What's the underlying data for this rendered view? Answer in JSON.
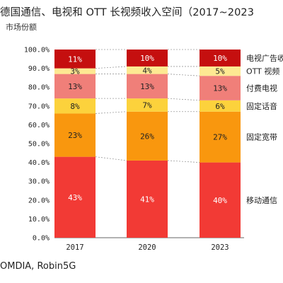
{
  "title": "德国通信、电视和 OTT 长视频收入空间（2017~2023",
  "subtitle": "市场份额",
  "source": "OMDIA, Robin5G",
  "chart_data": {
    "type": "bar",
    "stacked": true,
    "categories": [
      "2017",
      "2020",
      "2023"
    ],
    "ylim": [
      0,
      100
    ],
    "yticks": [
      0,
      10,
      20,
      30,
      40,
      50,
      60,
      70,
      80,
      90,
      100
    ],
    "ytick_labels": [
      "0.0%",
      "10.0%",
      "20.0%",
      "30.0%",
      "40.0%",
      "50.0%",
      "60.0%",
      "70.0%",
      "80.0%",
      "90.0%",
      "100.0%"
    ],
    "legend_position": "right",
    "series": [
      {
        "name": "移动通信",
        "values": [
          43,
          41,
          40
        ],
        "labels": [
          "43%",
          "41%",
          "40%"
        ],
        "color": "#f23a35",
        "text_color": "#ffffff"
      },
      {
        "name": "固定宽带",
        "values": [
          23,
          26,
          27
        ],
        "labels": [
          "23%",
          "26%",
          "27%"
        ],
        "color": "#f9970e",
        "text_color": "#222222"
      },
      {
        "name": "固定话音",
        "values": [
          8,
          7,
          6
        ],
        "labels": [
          "8%",
          "7%",
          "6%"
        ],
        "color": "#fcd23c",
        "text_color": "#222222"
      },
      {
        "name": "付费电视",
        "values": [
          13,
          13,
          13
        ],
        "labels": [
          "13%",
          "13%",
          "13%"
        ],
        "color": "#f07f79",
        "text_color": "#222222"
      },
      {
        "name": "OTT 视频",
        "values": [
          3,
          4,
          5
        ],
        "labels": [
          "3%",
          "4%",
          "5%"
        ],
        "color": "#fde992",
        "text_color": "#222222"
      },
      {
        "name": "电视广告收入",
        "values": [
          11,
          10,
          10
        ],
        "labels": [
          "11%",
          "10%",
          "10%"
        ],
        "color": "#c50f0f",
        "text_color": "#ffffff"
      }
    ]
  }
}
